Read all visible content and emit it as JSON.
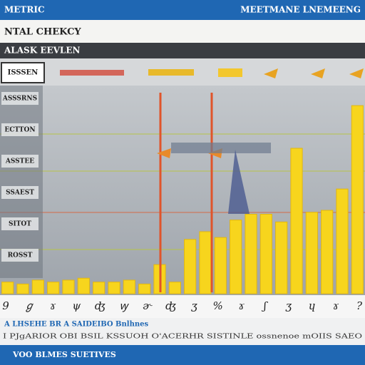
{
  "header": {
    "left": "METRIC",
    "right": "MEETMANE LNEMEENG"
  },
  "title": "NTAL CHEKCY",
  "subtitle": "ALASK EEVLEN",
  "toolbar": {
    "button": "ISSSEN"
  },
  "sidebar": [
    "ASSSRNS",
    "ECTTON",
    "ASSTEE",
    "SSAEST",
    "SITOT",
    "ROSST"
  ],
  "chart": {
    "type": "bar",
    "values": [
      6,
      5,
      7,
      6,
      7,
      8,
      6,
      6,
      7,
      5,
      15,
      6,
      28,
      32,
      29,
      38,
      41,
      41,
      37,
      75,
      42,
      43,
      54,
      97
    ],
    "ylim": [
      0,
      100
    ],
    "color": "#f7d51d"
  },
  "axis_labels": [
    "9",
    "ℊ",
    "ɤ",
    "ψ",
    "ʤ",
    "ꝡ",
    "ɚ",
    "ʤ",
    "ʒ",
    "%",
    "ɤ",
    "ʃ",
    "ʒ",
    "ɥ",
    "ɤ",
    "?"
  ],
  "caption": "A LHSEHE BR A SAIDEIBO Bnlhnes",
  "footnote": "I PJgARIOR OBI BSIL KSSUOH O'ACERHR SISTINLE   ossnenoe mOIIS SAEO",
  "footer": "VOO BLMES SUETIVES"
}
